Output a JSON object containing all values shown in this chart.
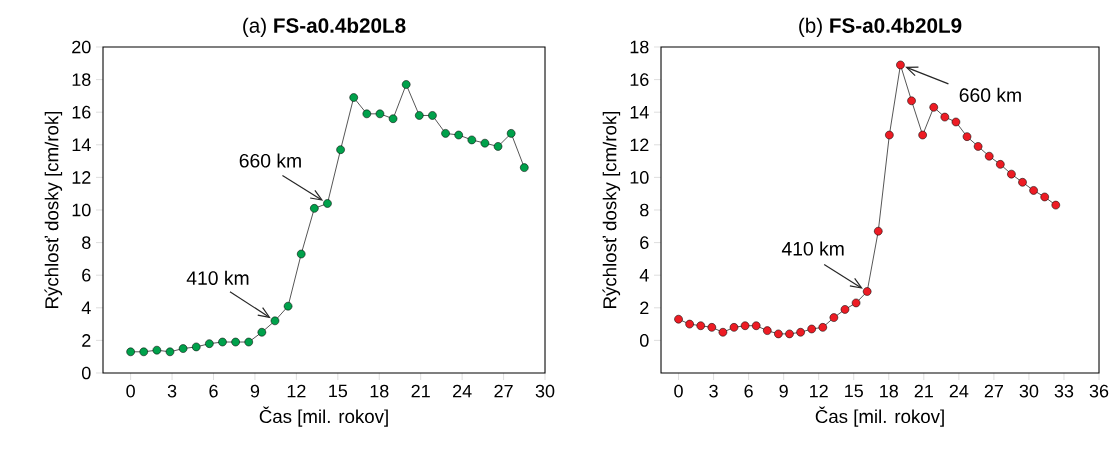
{
  "chart_data": [
    {
      "type": "line",
      "title": "(a) **FS-a0.4b20L8**",
      "xlabel": "Čas [mil. rokov]",
      "ylabel": "Rýchlosť dosky [cm/rok]",
      "marker": "circle",
      "x": [
        0,
        0.95,
        1.9,
        2.85,
        3.8,
        4.75,
        5.7,
        6.65,
        7.6,
        8.55,
        9.5,
        10.45,
        11.4,
        12.35,
        13.3,
        14.25,
        15.2,
        16.15,
        17.1,
        18.05,
        19,
        19.95,
        20.9,
        21.85,
        22.8,
        23.75,
        24.7,
        25.65,
        26.6,
        27.55,
        28.5
      ],
      "series": [
        {
          "color": "#00a14b",
          "values": [
            1.3,
            1.3,
            1.4,
            1.3,
            1.5,
            1.6,
            1.8,
            1.9,
            1.9,
            1.9,
            2.5,
            3.2,
            4.1,
            7.3,
            10.1,
            10.4,
            13.7,
            16.9,
            15.9,
            15.9,
            15.6,
            17.7,
            15.8,
            15.8,
            14.7,
            14.6,
            14.3,
            14.1,
            13.9,
            14.7,
            12.6
          ]
        }
      ],
      "xlim": [
        -2,
        30
      ],
      "ylim": [
        0,
        20
      ],
      "xticks": [
        0,
        3,
        6,
        9,
        12,
        15,
        18,
        21,
        24,
        27,
        30
      ],
      "yticks": [
        0,
        2,
        4,
        6,
        8,
        10,
        12,
        14,
        16,
        18,
        20
      ],
      "annotations": [
        {
          "text": "410 km",
          "x": 10.45,
          "y": 3.2
        },
        {
          "text": "660 km",
          "x": 14.25,
          "y": 10.4
        }
      ]
    },
    {
      "type": "line",
      "title": "(b) **FS-a0.4b20L9**",
      "xlabel": "Čas [mil. rokov]",
      "ylabel": "Rýchlosť dosky [cm/rok]",
      "marker": "circle",
      "x": [
        0,
        0.95,
        1.9,
        2.85,
        3.8,
        4.75,
        5.7,
        6.65,
        7.6,
        8.55,
        9.5,
        10.45,
        11.4,
        12.35,
        13.3,
        14.25,
        15.2,
        16.15,
        17.1,
        18.05,
        19,
        19.95,
        20.9,
        21.85,
        22.8,
        23.75,
        24.7,
        25.65,
        26.6,
        27.55,
        28.5,
        29.45,
        30.4,
        31.35,
        32.3
      ],
      "series": [
        {
          "color": "#ed1c24",
          "values": [
            1.3,
            1.0,
            0.9,
            0.8,
            0.5,
            0.8,
            0.9,
            0.9,
            0.6,
            0.4,
            0.4,
            0.5,
            0.7,
            0.8,
            1.4,
            1.9,
            2.3,
            3.0,
            6.7,
            12.6,
            16.9,
            14.7,
            12.6,
            14.3,
            13.7,
            13.4,
            12.5,
            11.9,
            11.3,
            10.8,
            10.2,
            9.7,
            9.2,
            8.8,
            8.3
          ]
        }
      ],
      "xlim": [
        -1.5,
        36
      ],
      "ylim": [
        -2,
        18
      ],
      "xticks": [
        0,
        3,
        6,
        9,
        12,
        15,
        18,
        21,
        24,
        27,
        30,
        33,
        36
      ],
      "yticks": [
        0,
        2,
        4,
        6,
        8,
        10,
        12,
        14,
        16,
        18
      ],
      "annotations": [
        {
          "text": "410 km",
          "x": 16.15,
          "y": 3.0
        },
        {
          "text": "660 km",
          "x": 19,
          "y": 16.9
        }
      ]
    }
  ]
}
